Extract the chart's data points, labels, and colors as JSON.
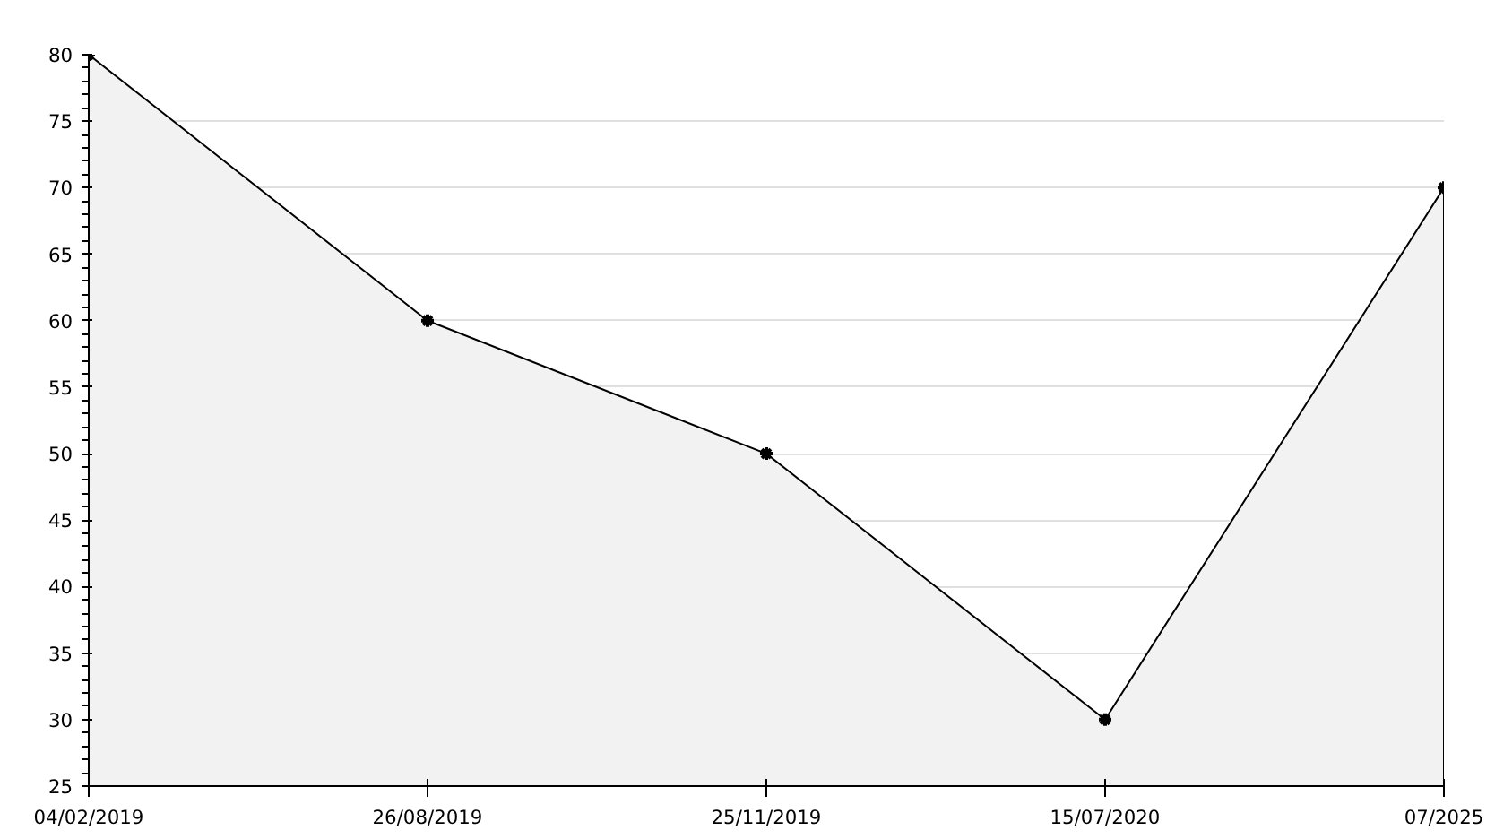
{
  "chart_data": {
    "type": "area",
    "categories": [
      "04/02/2019",
      "26/08/2019",
      "25/11/2019",
      "15/07/2020",
      "07/2025"
    ],
    "series": [
      {
        "color": "#000000",
        "values": [
          80,
          60,
          50,
          30,
          70
        ]
      }
    ],
    "ylim": [
      25,
      80
    ],
    "yticks": [
      25,
      30,
      35,
      40,
      45,
      50,
      55,
      60,
      65,
      70,
      75,
      80
    ],
    "grid": "y",
    "marker": "cross",
    "line_style": "solid"
  }
}
